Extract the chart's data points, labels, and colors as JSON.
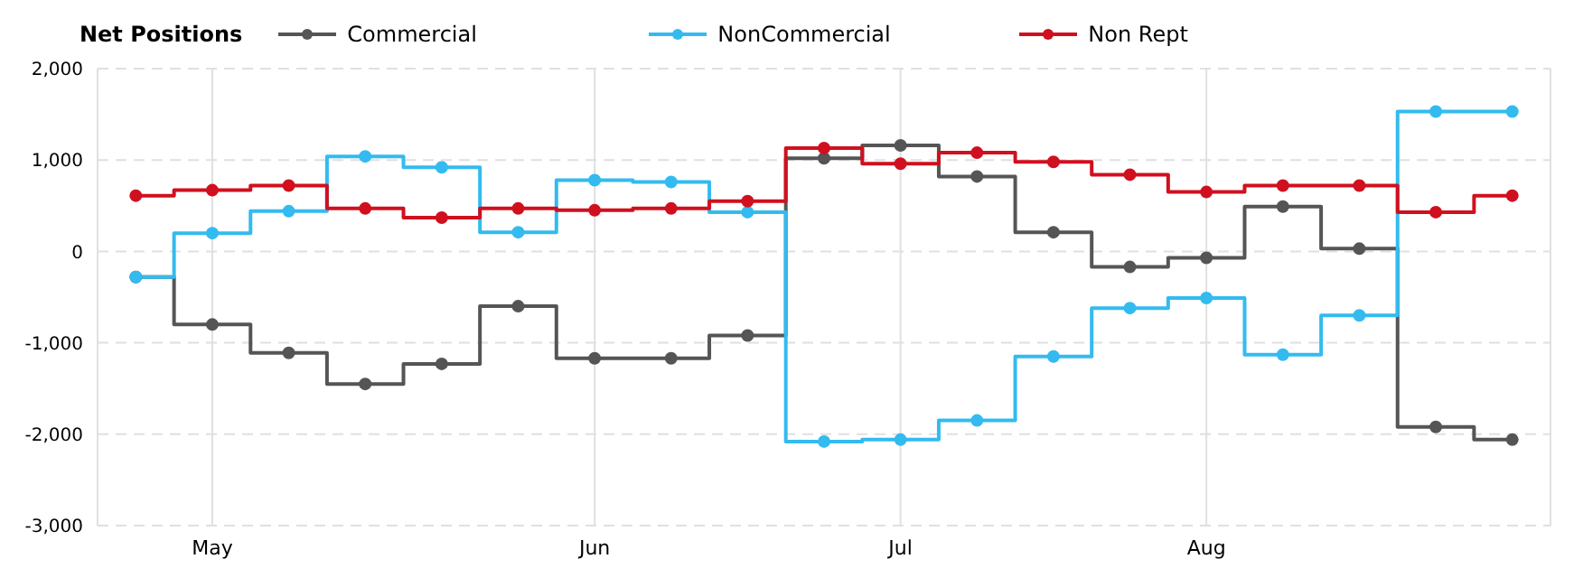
{
  "chart_data": {
    "type": "step",
    "legend_title": "Net Positions",
    "categories": [
      null,
      "May",
      null,
      null,
      null,
      null,
      "Jun",
      null,
      null,
      null,
      "Jul",
      null,
      null,
      null,
      "Aug",
      null,
      null,
      null,
      null
    ],
    "series": [
      {
        "name": "Commercial",
        "color": "#555555",
        "values": [
          -280,
          -800,
          -1110,
          -1450,
          -1230,
          -600,
          -1170,
          -1170,
          -920,
          1020,
          1160,
          820,
          210,
          -170,
          -70,
          490,
          30,
          -1920,
          -2060
        ]
      },
      {
        "name": "NonCommercial",
        "color": "#33bbf0",
        "values": [
          -280,
          200,
          440,
          1040,
          920,
          210,
          780,
          760,
          430,
          -2080,
          -2060,
          -1850,
          -1150,
          -620,
          -510,
          -1130,
          -700,
          1530,
          1530
        ]
      },
      {
        "name": "Non Rept",
        "color": "#d0101f",
        "values": [
          610,
          670,
          720,
          470,
          370,
          470,
          450,
          470,
          550,
          1130,
          960,
          1080,
          980,
          840,
          650,
          720,
          720,
          430,
          610
        ]
      }
    ],
    "ylim": [
      -3000,
      2000
    ],
    "yticks": [
      {
        "value": -3000,
        "label": "-3,000"
      },
      {
        "value": -2000,
        "label": "-2,000"
      },
      {
        "value": -1000,
        "label": "-1,000"
      },
      0,
      {
        "value": 1000,
        "label": "1,000"
      },
      {
        "value": 2000,
        "label": "2,000"
      }
    ],
    "grid": true,
    "legend": "top left",
    "marker": "circle",
    "line_style": "solid"
  }
}
